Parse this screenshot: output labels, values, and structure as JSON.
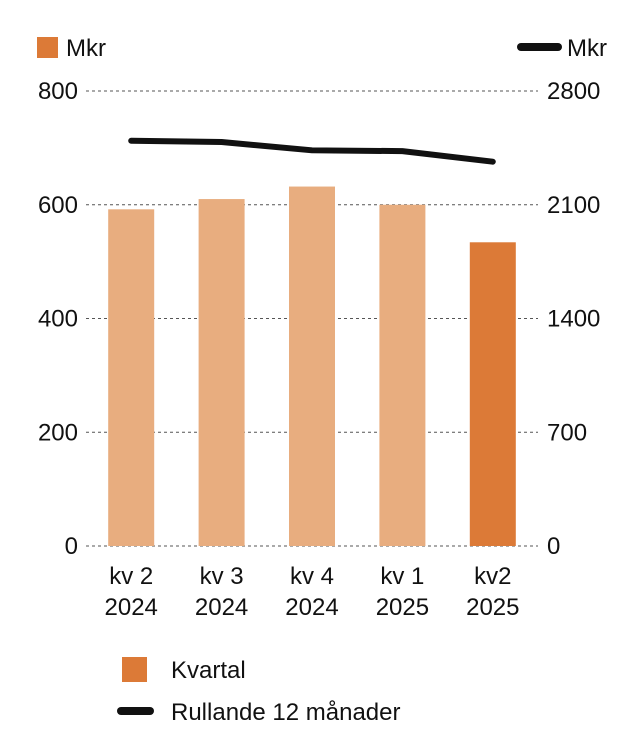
{
  "chart_data": {
    "type": "bar",
    "categories": [
      [
        "kv 2",
        "2024"
      ],
      [
        "kv 3",
        "2024"
      ],
      [
        "kv 4",
        "2024"
      ],
      [
        "kv 1",
        "2025"
      ],
      [
        "kv2",
        "2025"
      ]
    ],
    "series": [
      {
        "name": "Kvartal",
        "type": "bar",
        "axis": "left",
        "values": [
          592,
          610,
          632,
          600,
          534
        ],
        "colors": [
          "#e8ad7f",
          "#e8ad7f",
          "#e8ad7f",
          "#e8ad7f",
          "#dc7a37"
        ]
      },
      {
        "name": "Rullande 12 månader",
        "type": "line",
        "axis": "right",
        "values": [
          2494,
          2486,
          2435,
          2430,
          2365
        ],
        "color": "#111111"
      }
    ],
    "left_axis": {
      "unit": "Mkr",
      "ylim": [
        0,
        800
      ],
      "ticks": [
        "0",
        "200",
        "400",
        "600",
        "800"
      ]
    },
    "right_axis": {
      "unit": "Mkr",
      "ylim": [
        0,
        2800
      ],
      "ticks": [
        "0",
        "700",
        "1400",
        "2100",
        "2800"
      ]
    },
    "grid": "horizontal-dashed",
    "legend_position": "bottom"
  }
}
